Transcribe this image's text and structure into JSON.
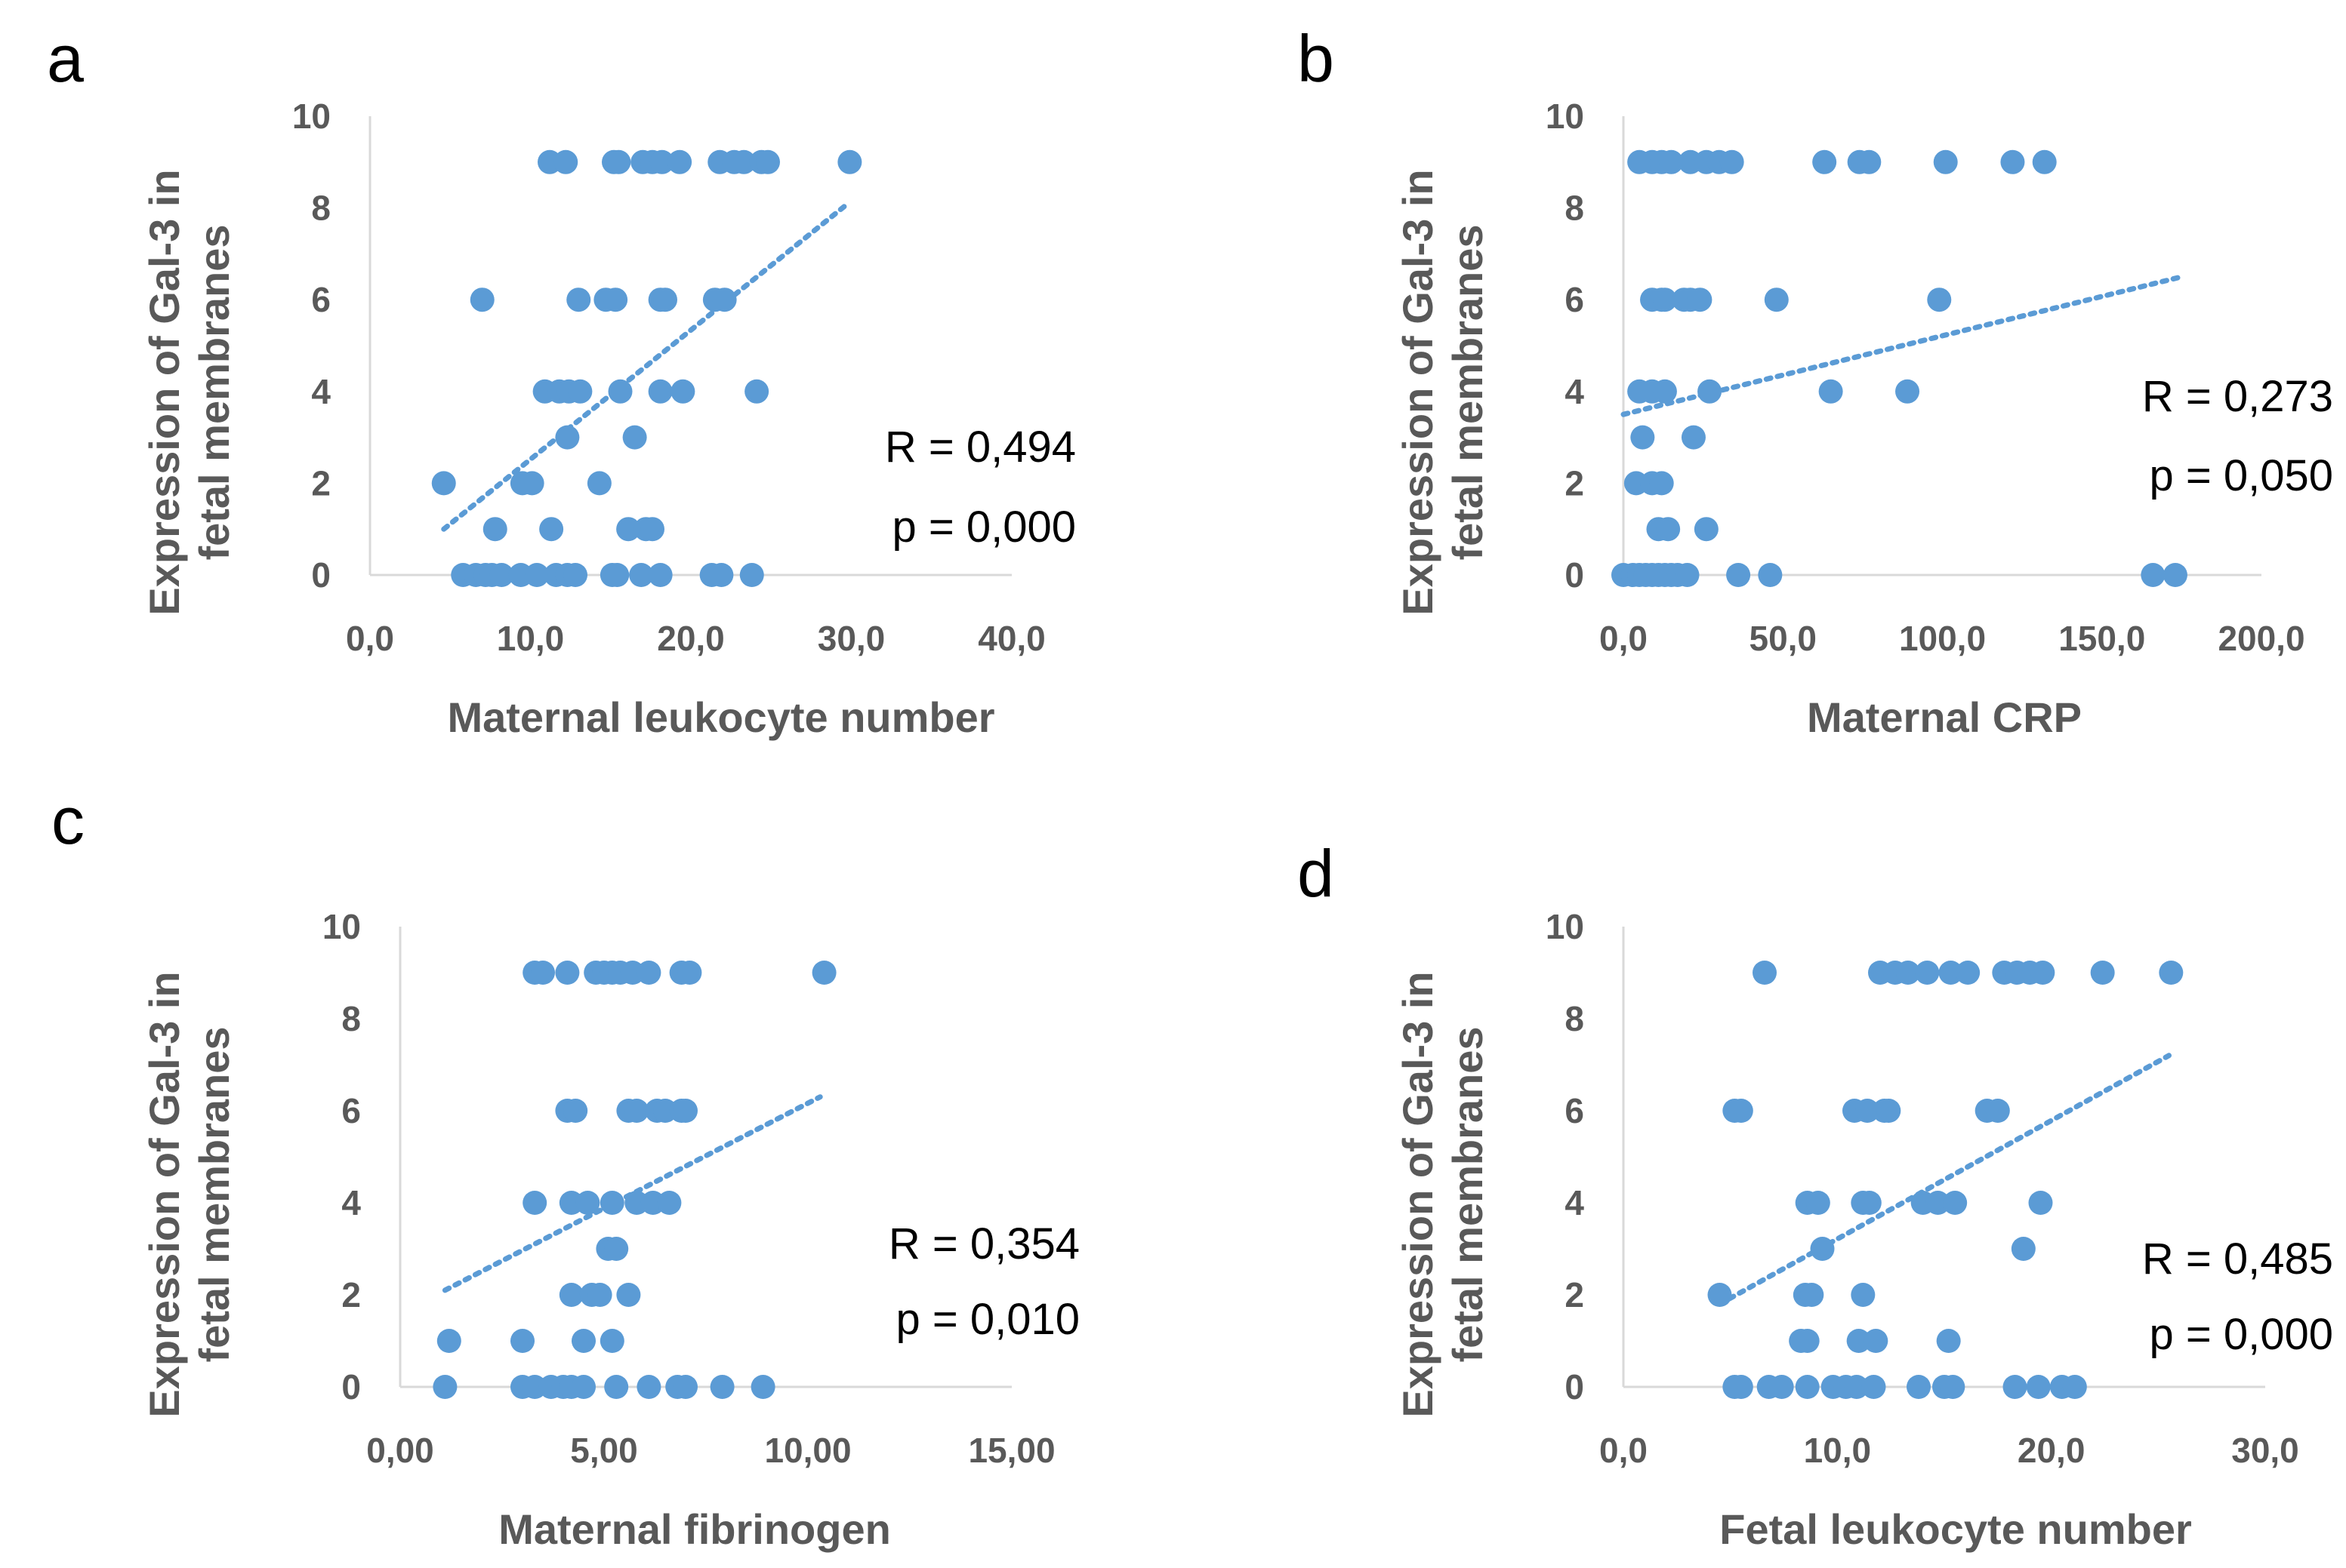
{
  "chart_data": [
    {
      "type": "scatter",
      "panel": "a",
      "xlabel": "Maternal leukocyte number",
      "ylabel": [
        "Expression of Gal-3 in",
        "fetal membranes"
      ],
      "xlim": [
        0,
        40
      ],
      "ylim": [
        0,
        10
      ],
      "xticks": [
        "0,0",
        "10,0",
        "20,0",
        "30,0",
        "40,0"
      ],
      "yticks": [
        "0",
        "2",
        "4",
        "6",
        "8",
        "10"
      ],
      "stats": [
        "R = 0,494",
        "p = 0,000"
      ],
      "trendline": {
        "x": [
          4.6,
          29.8
        ],
        "y": [
          1.0,
          8.1
        ]
      },
      "points": [
        [
          11.2,
          9
        ],
        [
          12.2,
          9
        ],
        [
          15.2,
          9
        ],
        [
          15.5,
          9
        ],
        [
          17,
          9
        ],
        [
          17.6,
          9
        ],
        [
          18.2,
          9
        ],
        [
          19.3,
          9
        ],
        [
          21.8,
          9
        ],
        [
          22.7,
          9
        ],
        [
          23.3,
          9
        ],
        [
          24.4,
          9
        ],
        [
          24.8,
          9
        ],
        [
          29.9,
          9
        ],
        [
          7.0,
          6
        ],
        [
          13.0,
          6
        ],
        [
          14.7,
          6
        ],
        [
          15.3,
          6
        ],
        [
          18.1,
          6
        ],
        [
          18.4,
          6
        ],
        [
          21.5,
          6
        ],
        [
          22.1,
          6
        ],
        [
          10.9,
          4
        ],
        [
          11.8,
          4
        ],
        [
          12.4,
          4
        ],
        [
          13.1,
          4
        ],
        [
          15.6,
          4
        ],
        [
          18.1,
          4
        ],
        [
          19.5,
          4
        ],
        [
          24.1,
          4
        ],
        [
          12.3,
          3
        ],
        [
          16.5,
          3
        ],
        [
          4.6,
          2
        ],
        [
          9.5,
          2
        ],
        [
          10.1,
          2
        ],
        [
          14.3,
          2
        ],
        [
          7.8,
          1
        ],
        [
          11.3,
          1
        ],
        [
          16.1,
          1
        ],
        [
          17.2,
          1
        ],
        [
          17.6,
          1
        ],
        [
          5.8,
          0
        ],
        [
          6.6,
          0
        ],
        [
          7.2,
          0
        ],
        [
          7.6,
          0
        ],
        [
          8.2,
          0
        ],
        [
          9.4,
          0
        ],
        [
          10.4,
          0
        ],
        [
          11.6,
          0
        ],
        [
          12.3,
          0
        ],
        [
          12.8,
          0
        ],
        [
          15.1,
          0
        ],
        [
          15.4,
          0
        ],
        [
          16.9,
          0
        ],
        [
          18.1,
          0
        ],
        [
          21.3,
          0
        ],
        [
          21.9,
          0
        ],
        [
          23.8,
          0
        ]
      ]
    },
    {
      "type": "scatter",
      "panel": "b",
      "xlabel": "Maternal CRP",
      "ylabel": [
        "Expression of Gal-3 in",
        "fetal membranes"
      ],
      "xlim": [
        0,
        200
      ],
      "ylim": [
        0,
        10
      ],
      "xticks": [
        "0,0",
        "50,0",
        "100,0",
        "150,0",
        "200,0"
      ],
      "yticks": [
        "0",
        "2",
        "4",
        "6",
        "8",
        "10"
      ],
      "stats": [
        "R = 0,273",
        "p = 0,050"
      ],
      "trendline": {
        "x": [
          0,
          175
        ],
        "y": [
          3.5,
          6.5
        ]
      },
      "points": [
        [
          5,
          9
        ],
        [
          9,
          9
        ],
        [
          12,
          9
        ],
        [
          15,
          9
        ],
        [
          21,
          9
        ],
        [
          26,
          9
        ],
        [
          30,
          9
        ],
        [
          34,
          9
        ],
        [
          63,
          9
        ],
        [
          74,
          9
        ],
        [
          77,
          9
        ],
        [
          101,
          9
        ],
        [
          122,
          9
        ],
        [
          132,
          9
        ],
        [
          9,
          6
        ],
        [
          12,
          6
        ],
        [
          13,
          6
        ],
        [
          19,
          6
        ],
        [
          21,
          6
        ],
        [
          24,
          6
        ],
        [
          48,
          6
        ],
        [
          99,
          6
        ],
        [
          5,
          4
        ],
        [
          9,
          4
        ],
        [
          13,
          4
        ],
        [
          27,
          4
        ],
        [
          65,
          4
        ],
        [
          89,
          4
        ],
        [
          6,
          3
        ],
        [
          22,
          3
        ],
        [
          4,
          2
        ],
        [
          9,
          2
        ],
        [
          12,
          2
        ],
        [
          11,
          1
        ],
        [
          14,
          1
        ],
        [
          26,
          1
        ],
        [
          0,
          0
        ],
        [
          3,
          0
        ],
        [
          5,
          0
        ],
        [
          7,
          0
        ],
        [
          9,
          0
        ],
        [
          11,
          0
        ],
        [
          13,
          0
        ],
        [
          15,
          0
        ],
        [
          17,
          0
        ],
        [
          20,
          0
        ],
        [
          36,
          0
        ],
        [
          46,
          0
        ],
        [
          166,
          0
        ],
        [
          173,
          0
        ]
      ]
    },
    {
      "type": "scatter",
      "panel": "c",
      "xlabel": "Maternal fibrinogen",
      "ylabel": [
        "Expression of Gal-3 in",
        "fetal membranes"
      ],
      "xlim": [
        0,
        15
      ],
      "ylim": [
        0,
        10
      ],
      "xticks": [
        "0,00",
        "5,00",
        "10,00",
        "15,00"
      ],
      "yticks": [
        "0",
        "2",
        "4",
        "6",
        "8",
        "10"
      ],
      "stats": [
        "R = 0,354",
        "p = 0,010"
      ],
      "trendline": {
        "x": [
          1.1,
          10.3
        ],
        "y": [
          2.1,
          6.3
        ]
      },
      "points": [
        [
          3.3,
          9
        ],
        [
          3.5,
          9
        ],
        [
          4.1,
          9
        ],
        [
          4.8,
          9
        ],
        [
          5.0,
          9
        ],
        [
          5.2,
          9
        ],
        [
          5.4,
          9
        ],
        [
          5.7,
          9
        ],
        [
          6.1,
          9
        ],
        [
          6.9,
          9
        ],
        [
          7.1,
          9
        ],
        [
          10.4,
          9
        ],
        [
          4.1,
          6
        ],
        [
          4.3,
          6
        ],
        [
          5.6,
          6
        ],
        [
          5.8,
          6
        ],
        [
          6.3,
          6
        ],
        [
          6.5,
          6
        ],
        [
          6.9,
          6
        ],
        [
          7.0,
          6
        ],
        [
          3.3,
          4
        ],
        [
          4.2,
          4
        ],
        [
          4.6,
          4
        ],
        [
          5.2,
          4
        ],
        [
          5.8,
          4
        ],
        [
          6.2,
          4
        ],
        [
          6.6,
          4
        ],
        [
          5.1,
          3
        ],
        [
          5.3,
          3
        ],
        [
          4.2,
          2
        ],
        [
          4.7,
          2
        ],
        [
          4.9,
          2
        ],
        [
          5.6,
          2
        ],
        [
          1.2,
          1
        ],
        [
          3.0,
          1
        ],
        [
          4.5,
          1
        ],
        [
          5.2,
          1
        ],
        [
          1.1,
          0
        ],
        [
          3.0,
          0
        ],
        [
          3.3,
          0
        ],
        [
          3.7,
          0
        ],
        [
          4.0,
          0
        ],
        [
          4.2,
          0
        ],
        [
          4.5,
          0
        ],
        [
          5.3,
          0
        ],
        [
          6.1,
          0
        ],
        [
          6.8,
          0
        ],
        [
          7.0,
          0
        ],
        [
          7.9,
          0
        ],
        [
          8.9,
          0
        ]
      ]
    },
    {
      "type": "scatter",
      "panel": "d",
      "xlabel": "Fetal leukocyte number",
      "ylabel": [
        "Expression of Gal-3 in",
        "fetal membranes"
      ],
      "xlim": [
        0,
        30
      ],
      "ylim": [
        0,
        10
      ],
      "xticks": [
        "0,0",
        "10,0",
        "20,0",
        "30,0"
      ],
      "yticks": [
        "0",
        "2",
        "4",
        "6",
        "8",
        "10"
      ],
      "stats": [
        "R = 0,485",
        "p = 0,000"
      ],
      "trendline": {
        "x": [
          4.5,
          25.5
        ],
        "y": [
          1.8,
          7.2
        ]
      },
      "points": [
        [
          6.6,
          9
        ],
        [
          12.0,
          9
        ],
        [
          12.7,
          9
        ],
        [
          13.3,
          9
        ],
        [
          14.2,
          9
        ],
        [
          15.3,
          9
        ],
        [
          16.1,
          9
        ],
        [
          17.8,
          9
        ],
        [
          18.4,
          9
        ],
        [
          19.0,
          9
        ],
        [
          19.6,
          9
        ],
        [
          22.4,
          9
        ],
        [
          25.6,
          9
        ],
        [
          5.2,
          6
        ],
        [
          5.5,
          6
        ],
        [
          10.8,
          6
        ],
        [
          11.4,
          6
        ],
        [
          12.2,
          6
        ],
        [
          12.4,
          6
        ],
        [
          17.0,
          6
        ],
        [
          17.5,
          6
        ],
        [
          8.6,
          4
        ],
        [
          9.1,
          4
        ],
        [
          11.2,
          4
        ],
        [
          11.5,
          4
        ],
        [
          14.0,
          4
        ],
        [
          14.7,
          4
        ],
        [
          15.5,
          4
        ],
        [
          19.5,
          4
        ],
        [
          9.3,
          3
        ],
        [
          18.7,
          3
        ],
        [
          4.5,
          2
        ],
        [
          8.5,
          2
        ],
        [
          8.8,
          2
        ],
        [
          11.2,
          2
        ],
        [
          8.3,
          1
        ],
        [
          8.6,
          1
        ],
        [
          11.0,
          1
        ],
        [
          11.8,
          1
        ],
        [
          15.2,
          1
        ],
        [
          5.2,
          0
        ],
        [
          5.5,
          0
        ],
        [
          6.8,
          0
        ],
        [
          7.4,
          0
        ],
        [
          8.6,
          0
        ],
        [
          9.8,
          0
        ],
        [
          10.4,
          0
        ],
        [
          10.9,
          0
        ],
        [
          11.7,
          0
        ],
        [
          13.8,
          0
        ],
        [
          15.0,
          0
        ],
        [
          15.4,
          0
        ],
        [
          18.3,
          0
        ],
        [
          19.4,
          0
        ],
        [
          20.5,
          0
        ],
        [
          21.1,
          0
        ]
      ]
    }
  ]
}
